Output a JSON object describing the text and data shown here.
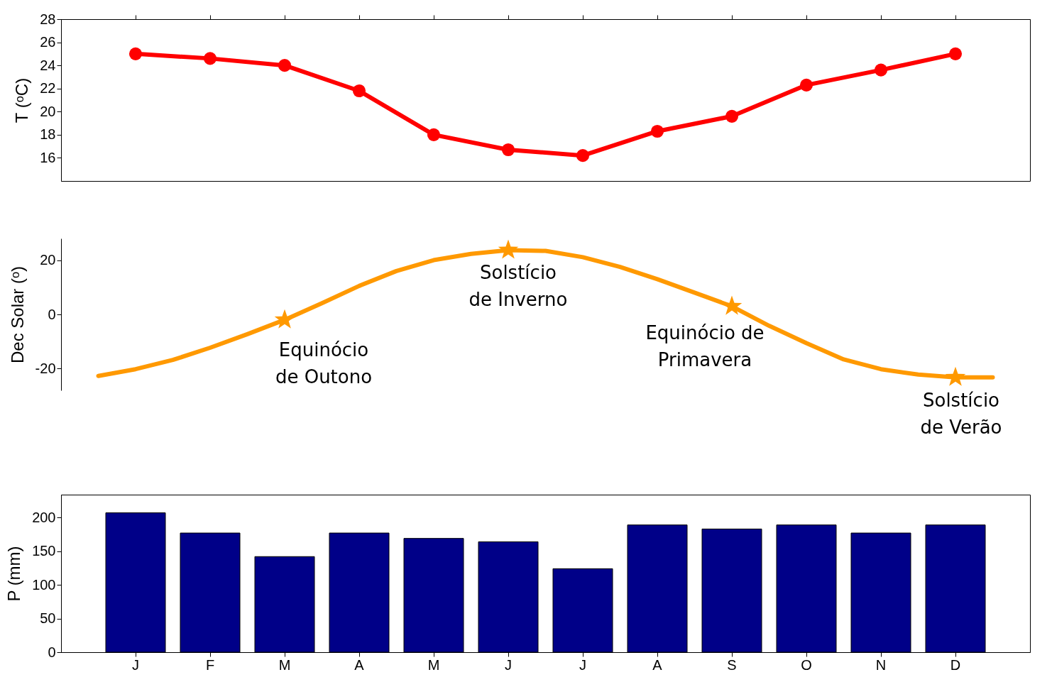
{
  "chart_data": [
    {
      "type": "line",
      "ylabel": "T (ᵒC)",
      "categories": [
        null,
        null,
        null,
        null,
        null,
        null,
        null,
        null,
        null,
        null,
        null,
        null
      ],
      "series": [
        {
          "color": "#ff0000",
          "values": [
            25,
            24.6,
            24,
            21.8,
            18,
            16.7,
            16.2,
            18.3,
            19.6,
            22.3,
            23.6,
            25
          ]
        }
      ],
      "ylim": [
        14,
        28
      ],
      "yticks": [
        16,
        18,
        20,
        22,
        24,
        26,
        28
      ],
      "marker": "circle",
      "line_style": "solid",
      "tick_labels": "y",
      "grid": false
    },
    {
      "type": "line",
      "ylabel": "Dec Solar (ᵒ)",
      "categories": [
        null,
        null,
        null,
        null,
        null,
        null,
        null,
        null,
        null,
        null,
        null,
        null,
        null,
        null,
        null,
        null,
        null,
        null,
        null,
        null,
        null,
        null,
        null,
        null,
        null
      ],
      "ylim": [
        -28,
        28
      ],
      "yticks": [
        -20,
        0,
        20
      ],
      "tick_labels": "y",
      "grid": false,
      "series": [
        {
          "color": "#ff9900",
          "marker": "none",
          "values": [
            -22.7,
            -20.2,
            -16.8,
            -12.3,
            -7.3,
            -2.0,
            4.1,
            10.5,
            16.0,
            20.0,
            22.3,
            23.7,
            23.4,
            21.1,
            17.5,
            13.0,
            8.0,
            3.0,
            -4.2,
            -10.6,
            -16.6,
            -20.2,
            -22.2,
            -23.2,
            -23.2
          ]
        },
        {
          "type": "scatter",
          "color": "#ff9900",
          "marker": "star",
          "values": [
            null,
            null,
            null,
            null,
            null,
            -2.0,
            null,
            null,
            null,
            null,
            null,
            23.7,
            null,
            null,
            null,
            null,
            null,
            3.0,
            null,
            null,
            null,
            null,
            null,
            -23.2,
            null
          ]
        }
      ],
      "annotations": [
        "Equinócio\nde Outono",
        "Solstício\nde Inverno",
        "Equinócio de\nPrimavera",
        "Solstício\nde Verão"
      ]
    },
    {
      "type": "bar",
      "ylabel": "P (mm)",
      "categories": [
        "J",
        "F",
        "M",
        "A",
        "M",
        "J",
        "J",
        "A",
        "S",
        "O",
        "N",
        "D"
      ],
      "series": [
        {
          "color": "#000088",
          "values": [
            207,
            177,
            142,
            177,
            169,
            164,
            124,
            189,
            183,
            189,
            177,
            189
          ]
        }
      ],
      "ylim": [
        0,
        234
      ],
      "yticks": [
        0,
        50,
        100,
        150,
        200
      ],
      "grid": false
    }
  ]
}
